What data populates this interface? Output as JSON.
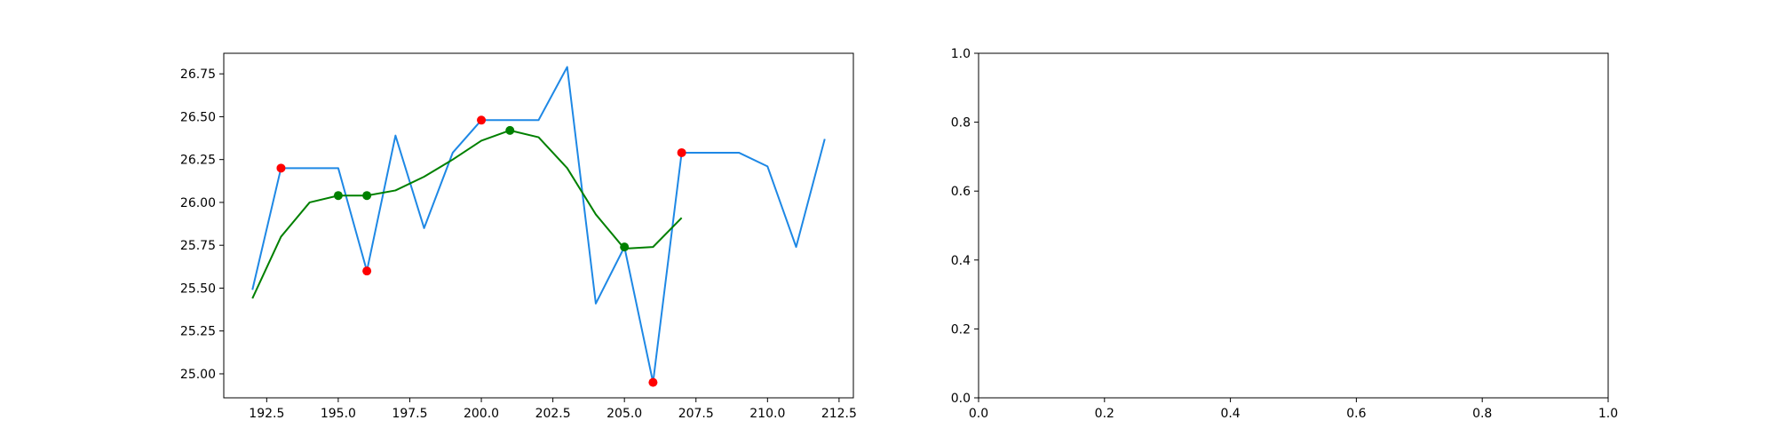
{
  "chart_data": [
    {
      "type": "line",
      "title": "",
      "xlabel": "",
      "ylabel": "",
      "xlim": [
        191,
        213
      ],
      "ylim": [
        24.86,
        26.87
      ],
      "xticks": [
        192.5,
        195.0,
        197.5,
        200.0,
        202.5,
        205.0,
        207.5,
        210.0,
        212.5
      ],
      "xtick_labels": [
        "192.5",
        "195.0",
        "197.5",
        "200.0",
        "202.5",
        "205.0",
        "207.5",
        "210.0",
        "212.5"
      ],
      "yticks": [
        25.0,
        25.25,
        25.5,
        25.75,
        26.0,
        26.25,
        26.5,
        26.75
      ],
      "ytick_labels": [
        "25.00",
        "25.25",
        "25.50",
        "25.75",
        "26.00",
        "26.25",
        "26.50",
        "26.75"
      ],
      "grid": false,
      "legend": null,
      "series": [
        {
          "kind": "line",
          "color": "#1e88e5",
          "x": [
            192,
            193,
            194,
            195,
            196,
            197,
            198,
            199,
            200,
            201,
            202,
            203,
            204,
            205,
            206,
            207,
            208,
            209,
            210,
            211,
            212
          ],
          "y": [
            25.49,
            26.2,
            26.2,
            26.2,
            25.6,
            26.39,
            25.85,
            26.29,
            26.48,
            26.48,
            26.48,
            26.79,
            25.41,
            25.74,
            24.95,
            26.29,
            26.29,
            26.29,
            26.21,
            25.74,
            26.37
          ]
        },
        {
          "kind": "line",
          "color": "#008000",
          "x": [
            192,
            193,
            194,
            195,
            196,
            197,
            198,
            199,
            200,
            201,
            202,
            203,
            204,
            205,
            206,
            207
          ],
          "y": [
            25.44,
            25.8,
            26.0,
            26.04,
            26.04,
            26.07,
            26.15,
            26.25,
            26.36,
            26.42,
            26.38,
            26.2,
            25.93,
            25.73,
            25.74,
            25.91
          ]
        },
        {
          "kind": "scatter",
          "color": "#ff0000",
          "x": [
            193,
            196,
            200,
            206,
            207
          ],
          "y": [
            26.2,
            25.6,
            26.48,
            24.95,
            26.29
          ]
        },
        {
          "kind": "scatter",
          "color": "#008000",
          "x": [
            195,
            196,
            201,
            205
          ],
          "y": [
            26.04,
            26.04,
            26.42,
            25.74
          ]
        }
      ]
    },
    {
      "type": "line",
      "title": "",
      "xlabel": "",
      "ylabel": "",
      "xlim": [
        0,
        1
      ],
      "ylim": [
        0,
        1
      ],
      "xticks": [
        0.0,
        0.2,
        0.4,
        0.6,
        0.8,
        1.0
      ],
      "xtick_labels": [
        "0.0",
        "0.2",
        "0.4",
        "0.6",
        "0.8",
        "1.0"
      ],
      "yticks": [
        0.0,
        0.2,
        0.4,
        0.6,
        0.8,
        1.0
      ],
      "ytick_labels": [
        "0.0",
        "0.2",
        "0.4",
        "0.6",
        "0.8",
        "1.0"
      ],
      "grid": false,
      "legend": null,
      "series": []
    }
  ]
}
